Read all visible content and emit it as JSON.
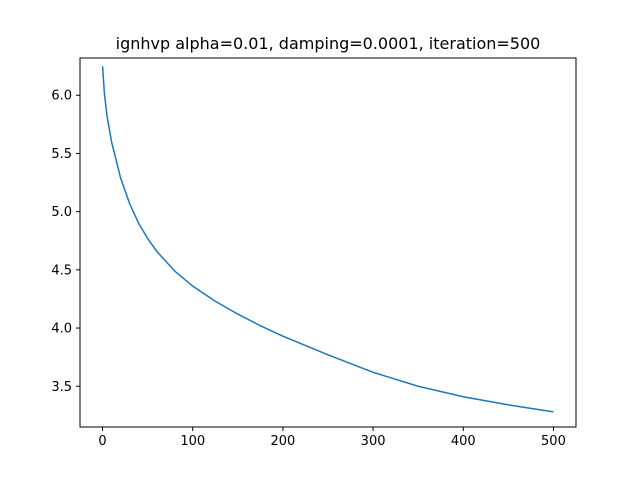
{
  "chart_data": {
    "type": "line",
    "title": "ignhvp alpha=0.01, damping=0.0001, iteration=500",
    "xlabel": "",
    "ylabel": "",
    "xlim": [
      -25,
      525
    ],
    "ylim": [
      3.15,
      6.32
    ],
    "xticks": [
      0,
      100,
      200,
      300,
      400,
      500
    ],
    "yticks": [
      3.5,
      4.0,
      4.5,
      5.0,
      5.5,
      6.0
    ],
    "xtick_labels": [
      "0",
      "100",
      "200",
      "300",
      "400",
      "500"
    ],
    "ytick_labels": [
      "3.5",
      "4.0",
      "4.5",
      "5.0",
      "5.5",
      "6.0"
    ],
    "grid": false,
    "legend": "none",
    "series": [
      {
        "color": "#1f77b4",
        "x": [
          0,
          2,
          5,
          10,
          20,
          30,
          40,
          50,
          60,
          80,
          100,
          125,
          150,
          175,
          200,
          250,
          300,
          350,
          400,
          450,
          500
        ],
        "y": [
          6.25,
          6.02,
          5.82,
          5.6,
          5.29,
          5.07,
          4.9,
          4.77,
          4.66,
          4.49,
          4.36,
          4.23,
          4.12,
          4.02,
          3.93,
          3.77,
          3.62,
          3.5,
          3.41,
          3.34,
          3.28
        ]
      }
    ]
  }
}
